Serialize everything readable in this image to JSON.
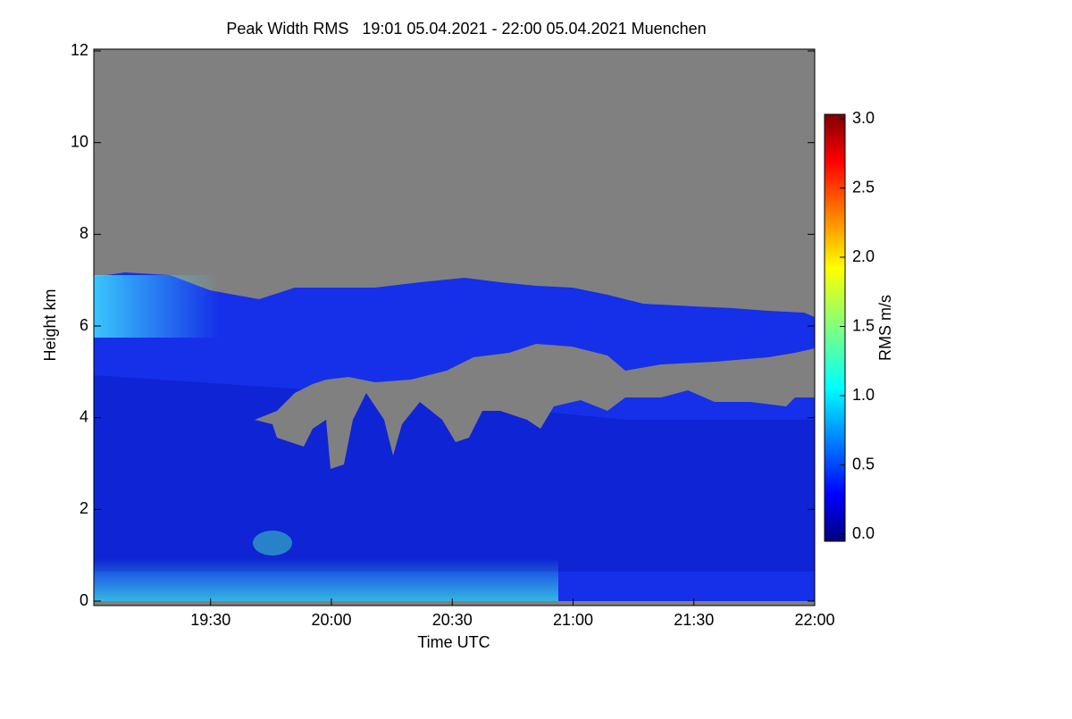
{
  "chart_data": {
    "type": "heatmap",
    "title": "Peak Width RMS   19:01 05.04.2021 - 22:00 05.04.2021 Muenchen",
    "x_label": "Time UTC",
    "y_label": "Height km",
    "xlim": [
      "19:01",
      "22:00"
    ],
    "xticks": [
      "19:30",
      "20:00",
      "20:30",
      "21:00",
      "21:30",
      "22:00"
    ],
    "ylim": [
      0,
      12
    ],
    "yticks": [
      0,
      2,
      4,
      6,
      8,
      10,
      12
    ],
    "colorbar_label": "RMS m/s",
    "zlim": [
      0,
      3
    ],
    "zticks": [
      {
        "value": 0,
        "label": "0.0"
      },
      {
        "value": 0.5,
        "label": "0.5"
      },
      {
        "value": 1,
        "label": "1.0"
      },
      {
        "value": 1.5,
        "label": "1.5"
      },
      {
        "value": 2,
        "label": "2.0"
      },
      {
        "value": 2.5,
        "label": "2.5"
      },
      {
        "value": 3,
        "label": "3.0"
      }
    ]
  }
}
